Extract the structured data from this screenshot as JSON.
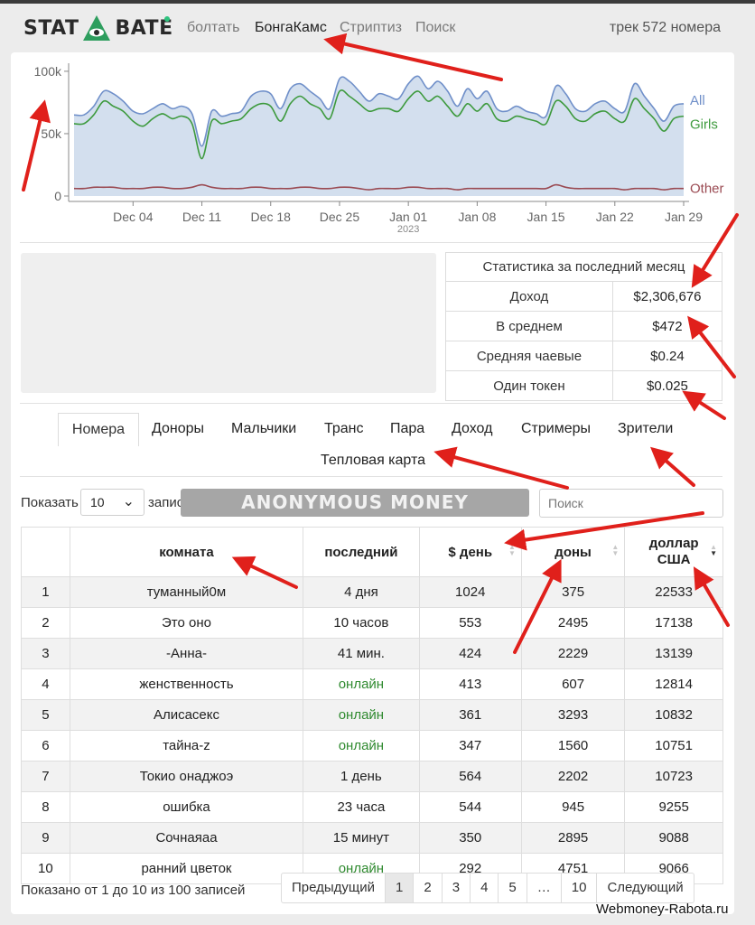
{
  "nav": {
    "logo_left": "STAT",
    "logo_right": "BATE",
    "links": [
      "болтать",
      "БонгаКамс",
      "Стриптиз",
      "Поиск"
    ],
    "active": "БонгаКамс",
    "track": "трек 572 номера"
  },
  "chart_data": {
    "type": "area",
    "x": [
      "Nov 28",
      "Nov 29",
      "Nov 30",
      "Dec 01",
      "Dec 02",
      "Dec 03",
      "Dec 04",
      "Dec 05",
      "Dec 06",
      "Dec 07",
      "Dec 08",
      "Dec 09",
      "Dec 10",
      "Dec 11",
      "Dec 12",
      "Dec 13",
      "Dec 14",
      "Dec 15",
      "Dec 16",
      "Dec 17",
      "Dec 18",
      "Dec 19",
      "Dec 20",
      "Dec 21",
      "Dec 22",
      "Dec 23",
      "Dec 24",
      "Dec 25",
      "Dec 26",
      "Dec 27",
      "Dec 28",
      "Dec 29",
      "Dec 30",
      "Dec 31",
      "Jan 01",
      "Jan 02",
      "Jan 03",
      "Jan 04",
      "Jan 05",
      "Jan 06",
      "Jan 07",
      "Jan 08",
      "Jan 09",
      "Jan 10",
      "Jan 11",
      "Jan 12",
      "Jan 13",
      "Jan 14",
      "Jan 15",
      "Jan 16",
      "Jan 17",
      "Jan 18",
      "Jan 19",
      "Jan 20",
      "Jan 21",
      "Jan 22",
      "Jan 23",
      "Jan 24",
      "Jan 25",
      "Jan 26",
      "Jan 27",
      "Jan 28",
      "Jan 29"
    ],
    "series": [
      {
        "name": "All",
        "color": "#6f8fc9",
        "values": [
          65,
          65,
          72,
          84,
          82,
          76,
          68,
          66,
          70,
          74,
          70,
          72,
          66,
          40,
          68,
          64,
          66,
          68,
          80,
          84,
          82,
          70,
          86,
          90,
          84,
          78,
          70,
          94,
          92,
          84,
          76,
          82,
          80,
          78,
          90,
          96,
          86,
          92,
          84,
          72,
          86,
          78,
          84,
          70,
          68,
          72,
          68,
          66,
          64,
          88,
          82,
          70,
          68,
          74,
          76,
          70,
          68,
          90,
          80,
          70,
          60,
          72,
          74
        ]
      },
      {
        "name": "Girls",
        "color": "#3d9a3d",
        "values": [
          58,
          58,
          65,
          76,
          72,
          68,
          60,
          56,
          62,
          66,
          62,
          64,
          58,
          30,
          60,
          58,
          60,
          62,
          70,
          74,
          72,
          60,
          74,
          80,
          74,
          70,
          62,
          84,
          80,
          74,
          68,
          70,
          70,
          68,
          78,
          84,
          76,
          80,
          72,
          64,
          74,
          68,
          74,
          62,
          60,
          64,
          62,
          60,
          58,
          76,
          72,
          62,
          60,
          66,
          68,
          62,
          60,
          78,
          70,
          62,
          52,
          62,
          64
        ]
      },
      {
        "name": "Other",
        "color": "#9a4a52",
        "values": [
          6,
          6,
          7,
          7,
          7,
          6,
          6,
          6,
          7,
          7,
          6,
          6,
          7,
          9,
          7,
          6,
          6,
          6,
          7,
          7,
          6,
          6,
          6,
          7,
          7,
          6,
          6,
          7,
          7,
          6,
          5,
          6,
          6,
          6,
          7,
          7,
          6,
          6,
          6,
          5,
          6,
          6,
          6,
          6,
          6,
          6,
          6,
          6,
          6,
          9,
          7,
          6,
          6,
          6,
          6,
          6,
          5,
          6,
          6,
          6,
          5,
          6,
          6
        ]
      }
    ],
    "y_ticks": [
      "100k",
      "50k",
      "0"
    ],
    "ylim": [
      0,
      105
    ],
    "x_ticks": [
      "Dec 04",
      "Dec 11",
      "Dec 18",
      "Dec 25",
      "Jan 01",
      "Jan 08",
      "Jan 15",
      "Jan 22",
      "Jan 29"
    ],
    "x_subtick": "2023",
    "legend_placement": "right"
  },
  "stats": {
    "title": "Статистика за последний месяц",
    "rows": [
      {
        "label": "Доход",
        "value": "$2,306,676"
      },
      {
        "label": "В среднем",
        "value": "$472"
      },
      {
        "label": "Средняя чаевые",
        "value": "$0.24"
      },
      {
        "label": "Один токен",
        "value": "$0.025"
      }
    ]
  },
  "tabs": [
    "Номера",
    "Доноры",
    "Мальчики",
    "Транс",
    "Пара",
    "Доход",
    "Стримеры",
    "Зрители",
    "Тепловая карта"
  ],
  "tabs_active": "Номера",
  "controls": {
    "show": "Показать",
    "count": "10",
    "entries": "записи",
    "banner": "ANONYMOUS MONEY",
    "search_placeholder": "Поиск"
  },
  "table": {
    "headers": [
      "",
      "комната",
      "последний",
      "$ день",
      "доны",
      "доллар США"
    ],
    "rows": [
      [
        "1",
        "туманный0м",
        "4 дня",
        "1024",
        "375",
        "22533"
      ],
      [
        "2",
        "Это оно",
        "10 часов",
        "553",
        "2495",
        "17138"
      ],
      [
        "3",
        "-Анна-",
        "41 мин.",
        "424",
        "2229",
        "13139"
      ],
      [
        "4",
        "женственность",
        "онлайн",
        "413",
        "607",
        "12814"
      ],
      [
        "5",
        "Алисасекс",
        "онлайн",
        "361",
        "3293",
        "10832"
      ],
      [
        "6",
        "тайна-z",
        "онлайн",
        "347",
        "1560",
        "10751"
      ],
      [
        "7",
        "Токио онаджоэ",
        "1 день",
        "564",
        "2202",
        "10723"
      ],
      [
        "8",
        "ошибка",
        "23 часа",
        "544",
        "945",
        "9255"
      ],
      [
        "9",
        "Сочнаяаа",
        "15 минут",
        "350",
        "2895",
        "9088"
      ],
      [
        "10",
        "ранний цветок",
        "онлайн",
        "292",
        "4751",
        "9066"
      ]
    ]
  },
  "footer": {
    "info": "Показано от 1 до 10 из 100 записей",
    "pager": [
      "Предыдущий",
      "1",
      "2",
      "3",
      "4",
      "5",
      "…",
      "10",
      "Следующий"
    ],
    "current": "1"
  },
  "watermark": "Webmoney-Rabota.ru",
  "colors": {
    "accent_green": "#2ec27e",
    "online": "#2f8a2f",
    "arrow": "#e0201b"
  }
}
